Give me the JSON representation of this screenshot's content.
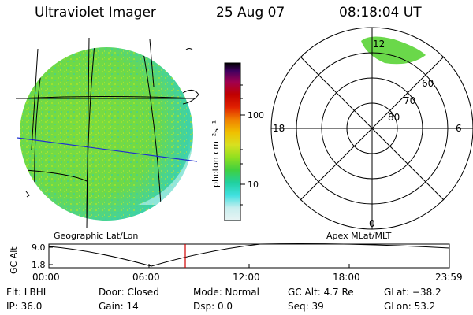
{
  "header": {
    "title": "Ultraviolet Imager",
    "date": "25 Aug 07",
    "time": "08:18:04 UT"
  },
  "image_panel": {
    "label": "Geographic Lat/Lon"
  },
  "colorbar": {
    "unit_label": "photon cm⁻²s⁻¹",
    "ticks": [
      "100",
      "10"
    ],
    "colors": [
      "#e8f4f4",
      "#c8eeee",
      "#40e0e0",
      "#20d0a0",
      "#40d040",
      "#90e020",
      "#d8e020",
      "#f0c000",
      "#f08000",
      "#e02000",
      "#c00000",
      "#a00050",
      "#400060",
      "#000000"
    ]
  },
  "polar_plot": {
    "label": "Apex MLat/MLT",
    "mlt_labels": {
      "top": "12",
      "right": "6",
      "bottom": "0",
      "left": "18"
    },
    "lat_labels": [
      "60",
      "70",
      "80"
    ]
  },
  "altitude_plot": {
    "ylabel": "GC Alt",
    "yticks": [
      "9.0",
      "1.8"
    ],
    "xticks": [
      "00:00",
      "06:00",
      "12:00",
      "18:00",
      "23:59"
    ],
    "current_time_marker": "08:18"
  },
  "info": {
    "flt": "Flt: LBHL",
    "ip": "IP: 36.0",
    "door": "Door: Closed",
    "gain": "Gain: 14",
    "mode": "Mode: Normal",
    "dsp": "Dsp:       0.0",
    "gcalt": "GC Alt: 4.7 Re",
    "seq": "Seq: 39",
    "glat": "GLat: −38.2",
    "glon": "GLon:   53.2"
  }
}
